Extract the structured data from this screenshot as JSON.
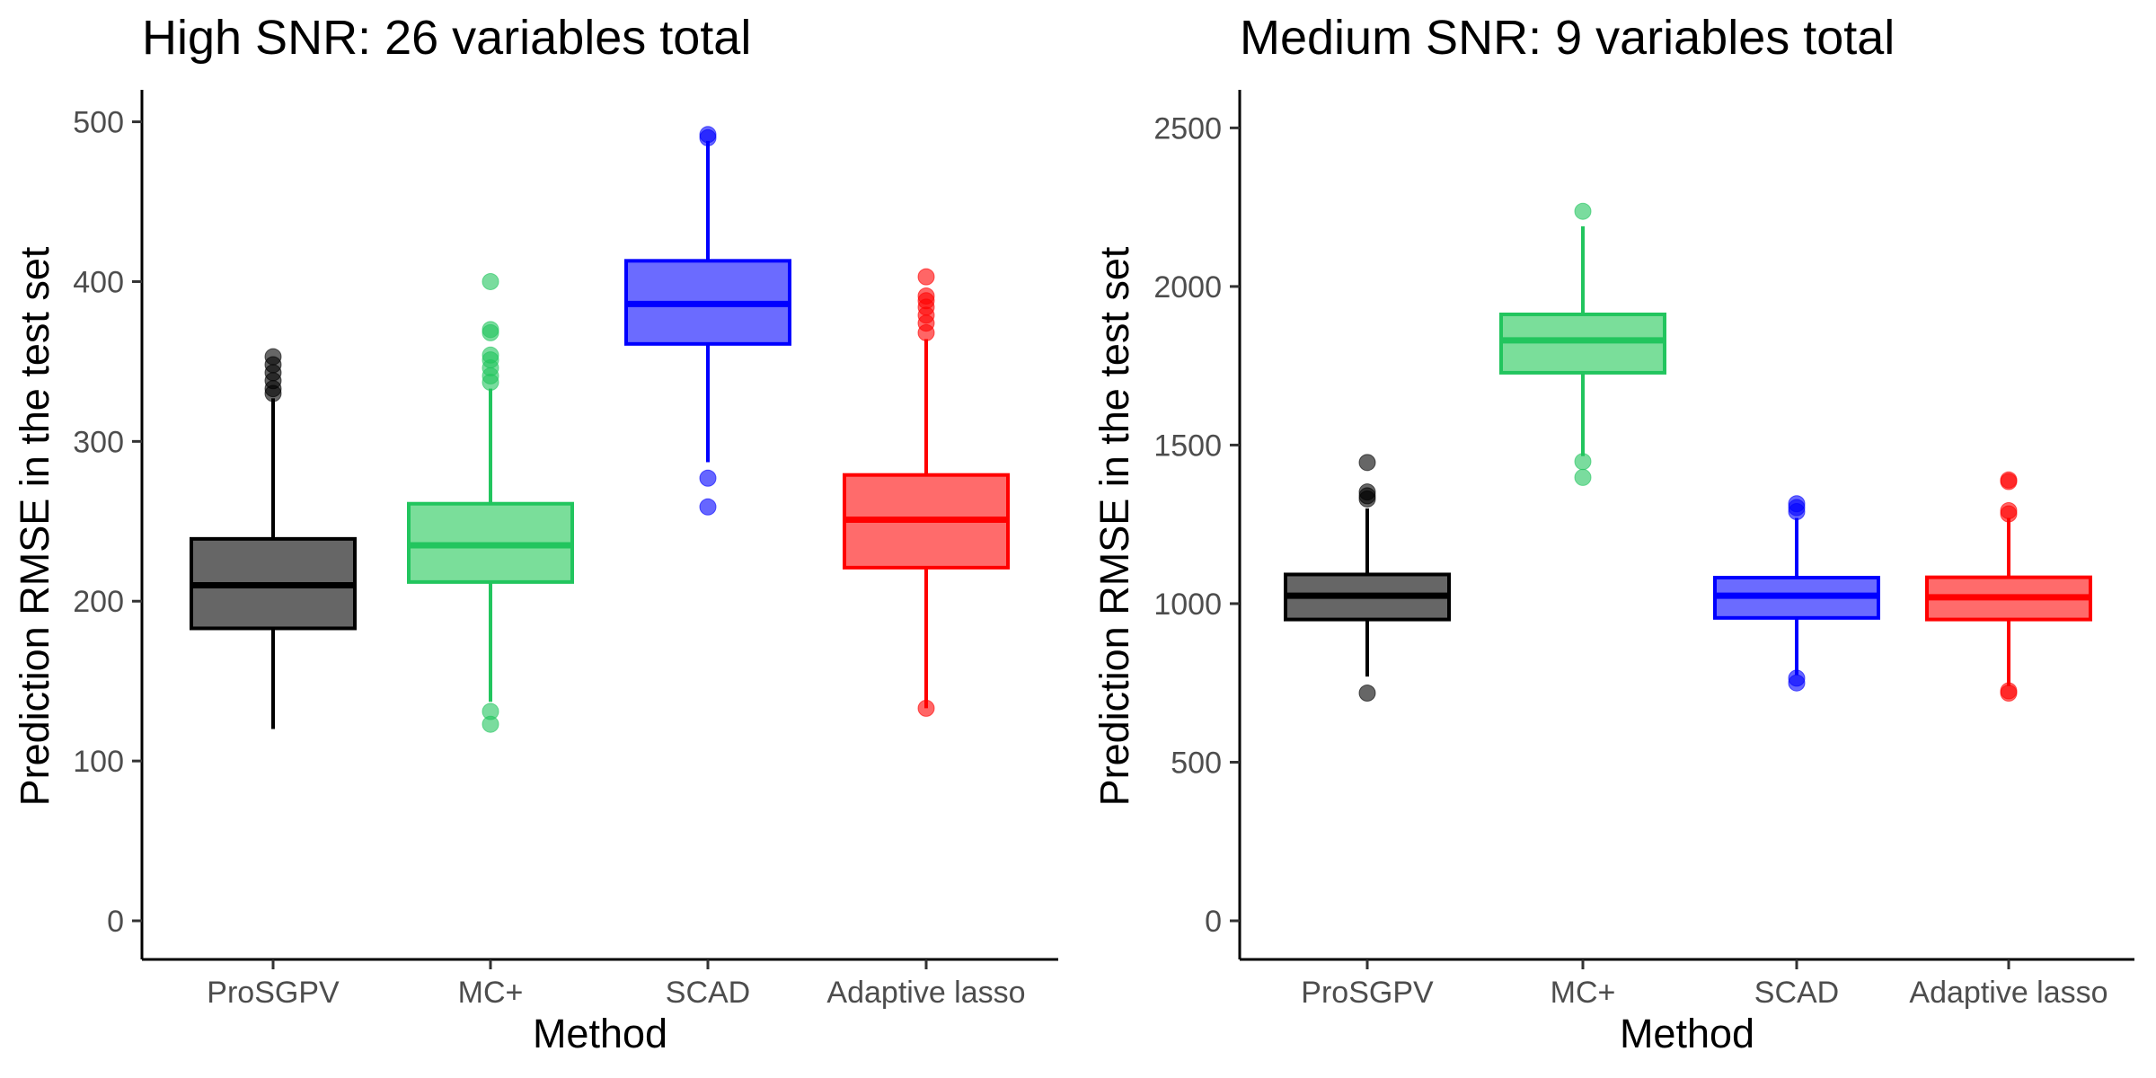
{
  "chart_data": [
    {
      "type": "boxplot",
      "title": "High SNR: 26 variables total",
      "xlabel": "Method",
      "ylabel": "Prediction RMSE in the test set",
      "ylim": [
        0,
        520
      ],
      "yticks": [
        0,
        100,
        200,
        300,
        400,
        500
      ],
      "grid": false,
      "categories": [
        "ProSGPV",
        "MC+",
        "SCAD",
        "Adaptive lasso"
      ],
      "colors": [
        "#000000",
        "#22c55e",
        "#0000ff",
        "#ff0000"
      ],
      "fills": [
        "#666666",
        "#7ade9a",
        "#6b6bff",
        "#ff6b6b"
      ],
      "boxes": [
        {
          "whisker_low": 120,
          "q1": 183,
          "median": 210,
          "q3": 239,
          "whisker_high": 327,
          "outliers": [
            330,
            333,
            338,
            343,
            348,
            353
          ]
        },
        {
          "whisker_low": 137,
          "q1": 212,
          "median": 235,
          "q3": 261,
          "whisker_high": 333,
          "outliers": [
            123,
            131,
            337,
            341,
            346,
            351,
            354,
            368,
            370,
            400
          ]
        },
        {
          "whisker_low": 287,
          "q1": 361,
          "median": 386,
          "q3": 413,
          "whisker_high": 488,
          "outliers": [
            259,
            277,
            490,
            492
          ]
        },
        {
          "whisker_low": 133,
          "q1": 221,
          "median": 251,
          "q3": 279,
          "whisker_high": 364,
          "outliers": [
            133,
            368,
            374,
            379,
            384,
            388,
            391,
            403
          ]
        }
      ]
    },
    {
      "type": "boxplot",
      "title": "Medium SNR: 9 variables total",
      "xlabel": "Method",
      "ylabel": "Prediction RMSE in the test set",
      "ylim": [
        0,
        2620
      ],
      "yticks": [
        0,
        500,
        1000,
        1500,
        2000,
        2500
      ],
      "grid": false,
      "categories": [
        "ProSGPV",
        "MC+",
        "SCAD",
        "Adaptive lasso"
      ],
      "colors": [
        "#000000",
        "#22c55e",
        "#0000ff",
        "#ff0000"
      ],
      "fills": [
        "#666666",
        "#7ade9a",
        "#6b6bff",
        "#ff6b6b"
      ],
      "boxes": [
        {
          "whisker_low": 770,
          "q1": 950,
          "median": 1025,
          "q3": 1092,
          "whisker_high": 1300,
          "outliers": [
            718,
            1330,
            1340,
            1352,
            1445
          ]
        },
        {
          "whisker_low": 1465,
          "q1": 1728,
          "median": 1830,
          "q3": 1912,
          "whisker_high": 2190,
          "outliers": [
            1398,
            1448,
            2237
          ]
        },
        {
          "whisker_low": 775,
          "q1": 955,
          "median": 1025,
          "q3": 1082,
          "whisker_high": 1270,
          "outliers": [
            750,
            765,
            1290,
            1303,
            1315
          ]
        },
        {
          "whisker_low": 740,
          "q1": 950,
          "median": 1020,
          "q3": 1083,
          "whisker_high": 1270,
          "outliers": [
            718,
            725,
            1283,
            1293,
            1385,
            1390
          ]
        }
      ]
    }
  ]
}
